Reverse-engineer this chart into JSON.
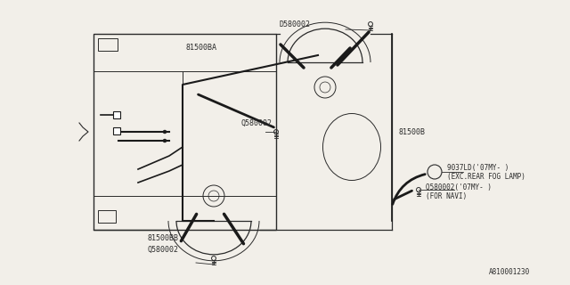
{
  "bg_color": "#f2efe9",
  "line_color": "#2a2a2a",
  "wire_color": "#1a1a1a",
  "text_color": "#2a2a2a",
  "part_number": "A810001230",
  "labels": {
    "Q580002_top": "D580002",
    "81500BA": "81500BA",
    "Q590002_mid": "Q580002",
    "81500B": "81500B",
    "9037LD": "9037LD('07MY- )",
    "exc_rear": "(EXC.REAR FOG LAMP)",
    "Q580002_07MY": "Q580002('07MY- )",
    "for_navi": "(FOR NAVI)",
    "81500BB": "81500BB",
    "Q580002_bot": "Q580002",
    "Q590002_label": "Q580002"
  },
  "font_size": 6.0,
  "small_font": 5.5
}
